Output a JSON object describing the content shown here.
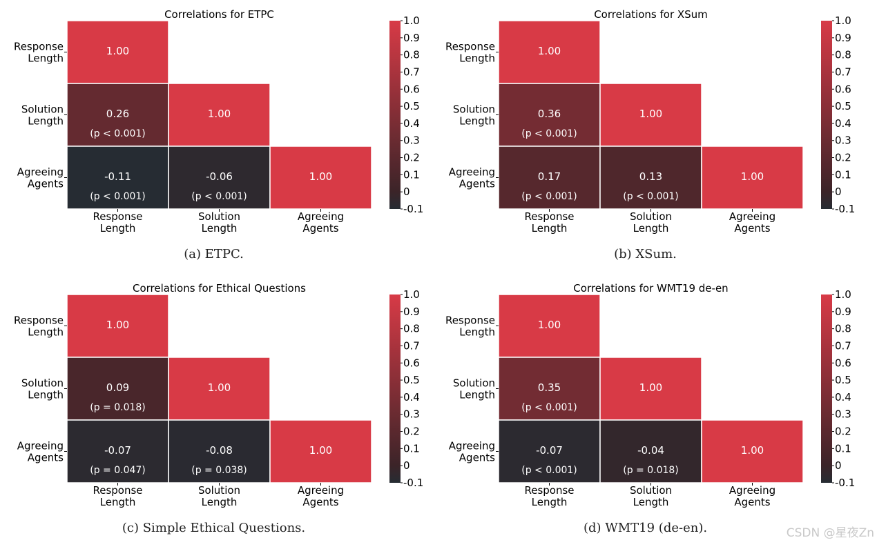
{
  "chart_data": [
    {
      "type": "heatmap",
      "title": "Correlations for ETPC",
      "caption": "(a)  ETPC.",
      "row_labels": [
        "Response Length",
        "Solution Length",
        "Agreeing Agents"
      ],
      "col_labels": [
        "Response Length",
        "Solution Length",
        "Agreeing Agents"
      ],
      "cells": [
        {
          "row": 0,
          "col": 0,
          "value": 1.0,
          "label": "1.00",
          "p": ""
        },
        {
          "row": 1,
          "col": 0,
          "value": 0.26,
          "label": "0.26",
          "p": "(p < 0.001)"
        },
        {
          "row": 1,
          "col": 1,
          "value": 1.0,
          "label": "1.00",
          "p": ""
        },
        {
          "row": 2,
          "col": 0,
          "value": -0.11,
          "label": "-0.11",
          "p": "(p < 0.001)"
        },
        {
          "row": 2,
          "col": 1,
          "value": -0.06,
          "label": "-0.06",
          "p": "(p < 0.001)"
        },
        {
          "row": 2,
          "col": 2,
          "value": 1.0,
          "label": "1.00",
          "p": ""
        }
      ],
      "colorbar": {
        "vmin": -0.1,
        "vmax": 1.0,
        "ticks": [
          1.0,
          0.9,
          0.8,
          0.7,
          0.6,
          0.5,
          0.4,
          0.3,
          0.2,
          0.1,
          0,
          -0.1
        ],
        "tick_labels": [
          "1.0",
          "0.9",
          "0.8",
          "0.7",
          "0.6",
          "0.5",
          "0.4",
          "0.3",
          "0.2",
          "0.1",
          "0",
          "-0.1"
        ]
      }
    },
    {
      "type": "heatmap",
      "title": "Correlations for XSum",
      "caption": "(b)  XSum.",
      "row_labels": [
        "Response Length",
        "Solution Length",
        "Agreeing Agents"
      ],
      "col_labels": [
        "Response Length",
        "Solution Length",
        "Agreeing Agents"
      ],
      "cells": [
        {
          "row": 0,
          "col": 0,
          "value": 1.0,
          "label": "1.00",
          "p": ""
        },
        {
          "row": 1,
          "col": 0,
          "value": 0.36,
          "label": "0.36",
          "p": "(p < 0.001)"
        },
        {
          "row": 1,
          "col": 1,
          "value": 1.0,
          "label": "1.00",
          "p": ""
        },
        {
          "row": 2,
          "col": 0,
          "value": 0.17,
          "label": "0.17",
          "p": "(p < 0.001)"
        },
        {
          "row": 2,
          "col": 1,
          "value": 0.13,
          "label": "0.13",
          "p": "(p < 0.001)"
        },
        {
          "row": 2,
          "col": 2,
          "value": 1.0,
          "label": "1.00",
          "p": ""
        }
      ],
      "colorbar": {
        "vmin": -0.1,
        "vmax": 1.0,
        "ticks": [
          1.0,
          0.9,
          0.8,
          0.7,
          0.6,
          0.5,
          0.4,
          0.3,
          0.2,
          0.1,
          0,
          -0.1
        ],
        "tick_labels": [
          "1.0",
          "0.9",
          "0.8",
          "0.7",
          "0.6",
          "0.5",
          "0.4",
          "0.3",
          "0.2",
          "0.1",
          "0",
          "-0.1"
        ]
      }
    },
    {
      "type": "heatmap",
      "title": "Correlations for Ethical Questions",
      "caption": "(c)  Simple Ethical Questions.",
      "row_labels": [
        "Response Length",
        "Solution Length",
        "Agreeing Agents"
      ],
      "col_labels": [
        "Response Length",
        "Solution Length",
        "Agreeing Agents"
      ],
      "cells": [
        {
          "row": 0,
          "col": 0,
          "value": 1.0,
          "label": "1.00",
          "p": ""
        },
        {
          "row": 1,
          "col": 0,
          "value": 0.09,
          "label": "0.09",
          "p": "(p = 0.018)"
        },
        {
          "row": 1,
          "col": 1,
          "value": 1.0,
          "label": "1.00",
          "p": ""
        },
        {
          "row": 2,
          "col": 0,
          "value": -0.07,
          "label": "-0.07",
          "p": "(p = 0.047)"
        },
        {
          "row": 2,
          "col": 1,
          "value": -0.08,
          "label": "-0.08",
          "p": "(p = 0.038)"
        },
        {
          "row": 2,
          "col": 2,
          "value": 1.0,
          "label": "1.00",
          "p": ""
        }
      ],
      "colorbar": {
        "vmin": -0.1,
        "vmax": 1.0,
        "ticks": [
          1.0,
          0.9,
          0.8,
          0.7,
          0.6,
          0.5,
          0.4,
          0.3,
          0.2,
          0.1,
          0,
          -0.1
        ],
        "tick_labels": [
          "1.0",
          "0.9",
          "0.8",
          "0.7",
          "0.6",
          "0.5",
          "0.4",
          "0.3",
          "0.2",
          "0.1",
          "0",
          "-0.1"
        ]
      }
    },
    {
      "type": "heatmap",
      "title": "Correlations for WMT19 de-en",
      "caption": "(d)  WMT19 (de-en).",
      "row_labels": [
        "Response Length",
        "Solution Length",
        "Agreeing Agents"
      ],
      "col_labels": [
        "Response Length",
        "Solution Length",
        "Agreeing Agents"
      ],
      "cells": [
        {
          "row": 0,
          "col": 0,
          "value": 1.0,
          "label": "1.00",
          "p": ""
        },
        {
          "row": 1,
          "col": 0,
          "value": 0.35,
          "label": "0.35",
          "p": "(p < 0.001)"
        },
        {
          "row": 1,
          "col": 1,
          "value": 1.0,
          "label": "1.00",
          "p": ""
        },
        {
          "row": 2,
          "col": 0,
          "value": -0.07,
          "label": "-0.07",
          "p": "(p < 0.001)"
        },
        {
          "row": 2,
          "col": 1,
          "value": -0.04,
          "label": "-0.04",
          "p": "(p = 0.018)"
        },
        {
          "row": 2,
          "col": 2,
          "value": 1.0,
          "label": "1.00",
          "p": ""
        }
      ],
      "colorbar": {
        "vmin": -0.1,
        "vmax": 1.0,
        "ticks": [
          1.0,
          0.9,
          0.8,
          0.7,
          0.6,
          0.5,
          0.4,
          0.3,
          0.2,
          0.1,
          0,
          -0.1
        ],
        "tick_labels": [
          "1.0",
          "0.9",
          "0.8",
          "0.7",
          "0.6",
          "0.5",
          "0.4",
          "0.3",
          "0.2",
          "0.1",
          "0",
          "-0.1"
        ]
      }
    }
  ],
  "colors": {
    "low": "#262c33",
    "mid": "#3b2428",
    "high": "#d83a46",
    "cell_border": "#ffffff",
    "cell_text": "#ffffff",
    "axis_text": "#000000"
  },
  "watermark": "CSDN @星夜Zn"
}
